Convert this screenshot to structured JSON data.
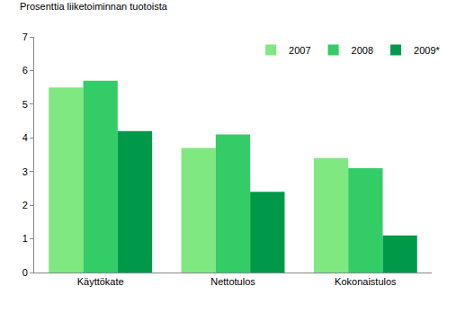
{
  "chart_data": {
    "type": "bar",
    "ylabel": "Prosenttia liiketoiminnan tuotoista",
    "categories": [
      "Käyttökate",
      "Nettotulos",
      "Kokonaistulos"
    ],
    "series": [
      {
        "name": "2007",
        "color": "#80e880",
        "values": [
          5.5,
          3.7,
          3.4
        ]
      },
      {
        "name": "2008",
        "color": "#33cc66",
        "values": [
          5.7,
          4.1,
          3.1
        ]
      },
      {
        "name": "2009*",
        "color": "#00994a",
        "values": [
          4.2,
          2.4,
          1.1
        ]
      }
    ],
    "ylim": [
      0,
      7
    ],
    "yticks": [
      0,
      1,
      2,
      3,
      4,
      5,
      6,
      7
    ],
    "grid": false,
    "legend": "top right"
  }
}
